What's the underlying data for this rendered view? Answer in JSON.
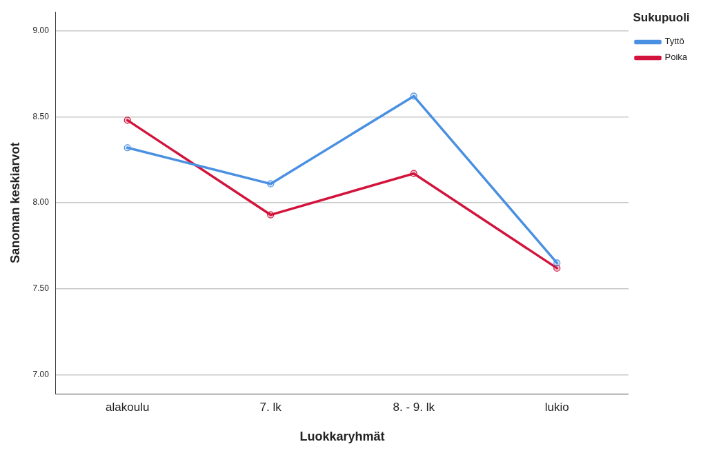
{
  "chart_data": {
    "type": "line",
    "xlabel": "Luokkaryhmät",
    "ylabel": "Sanoman keskiarvot",
    "legend_title": "Sukupuoli",
    "categories": [
      "alakoulu",
      "7. lk",
      "8. - 9. lk",
      "lukio"
    ],
    "series": [
      {
        "name": "Tyttö",
        "color": "#4a90e2",
        "values": [
          8.32,
          8.11,
          8.62,
          7.65
        ]
      },
      {
        "name": "Poika",
        "color": "#d2143c",
        "values": [
          8.48,
          7.93,
          8.17,
          7.62
        ]
      }
    ],
    "ylim": [
      6.89,
      9.11
    ],
    "yticks": [
      {
        "value": 7,
        "label": "7.00"
      },
      {
        "value": 7.5,
        "label": "7.50"
      },
      {
        "value": 8,
        "label": "8.00"
      },
      {
        "value": 8.5,
        "label": "8.50"
      },
      {
        "value": 9,
        "label": "9.00"
      }
    ],
    "grid": "y",
    "legend": "top right",
    "marker": "circle",
    "line_style": "solid"
  }
}
